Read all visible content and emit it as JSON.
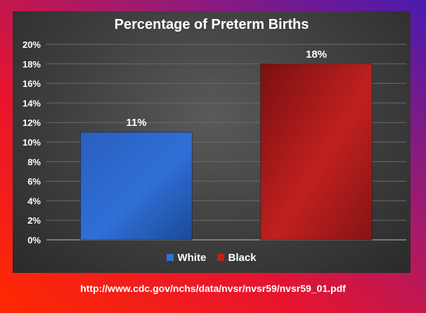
{
  "chart_data": {
    "type": "bar",
    "title": "Percentage of Preterm Births",
    "categories": [
      "White",
      "Black"
    ],
    "values": [
      11,
      18
    ],
    "value_labels": [
      "11%",
      "18%"
    ],
    "ylim": [
      0,
      20
    ],
    "yticks": [
      0,
      2,
      4,
      6,
      8,
      10,
      12,
      14,
      16,
      18,
      20
    ],
    "ytick_labels": [
      "0%",
      "2%",
      "4%",
      "6%",
      "8%",
      "10%",
      "12%",
      "14%",
      "16%",
      "18%",
      "20%"
    ],
    "grid": true,
    "legend_position": "bottom",
    "colors": [
      "#2f6fd6",
      "#c0201f"
    ],
    "xlabel": "",
    "ylabel": ""
  },
  "footer": {
    "link_text": "http://www.cdc.gov/nchs/data/nvsr/nvsr59/nvsr59_01.pdf"
  }
}
